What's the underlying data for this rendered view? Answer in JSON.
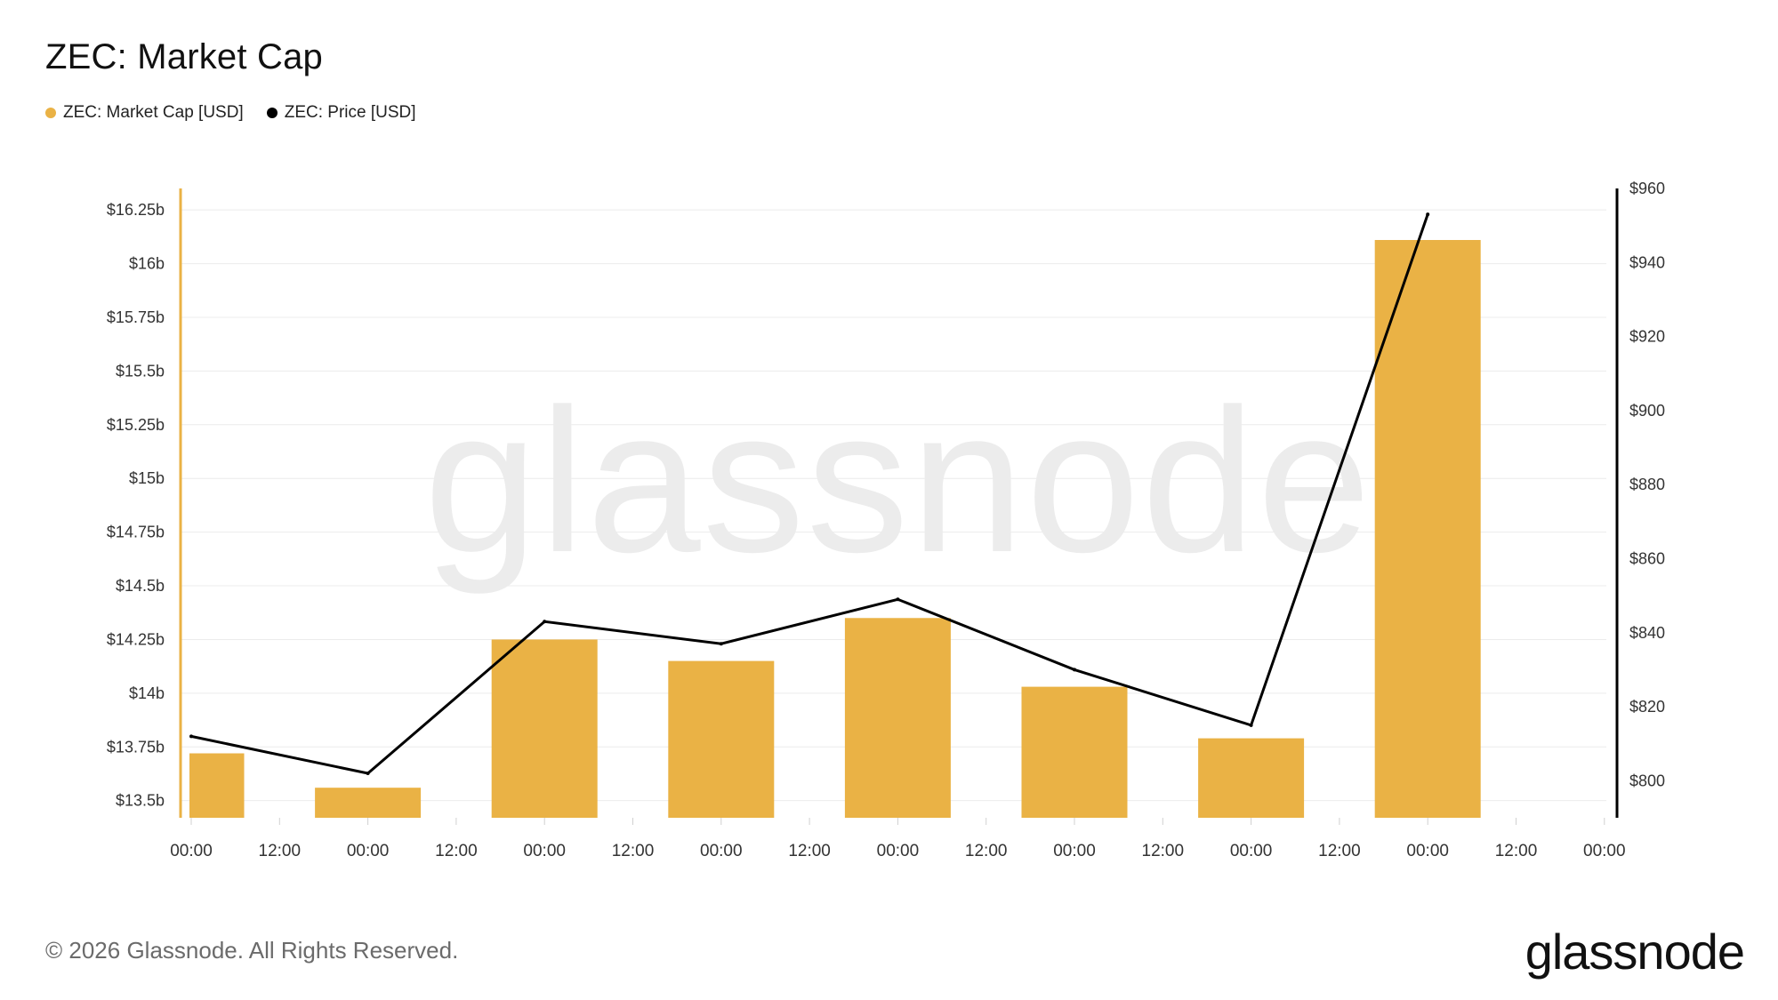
{
  "title": "ZEC: Market Cap",
  "legend": [
    {
      "label": "ZEC: Market Cap [USD]",
      "color": "#EAB245"
    },
    {
      "label": "ZEC: Price [USD]",
      "color": "#000000"
    }
  ],
  "watermark": "glassnode",
  "footer": "© 2026 Glassnode. All Rights Reserved.",
  "brand": "glassnode",
  "chart_data": {
    "type": "bar",
    "grid": true,
    "x_tick_labels": [
      "00:00",
      "12:00",
      "00:00",
      "12:00",
      "00:00",
      "12:00",
      "00:00",
      "12:00",
      "00:00",
      "12:00",
      "00:00",
      "12:00",
      "00:00",
      "12:00",
      "00:00",
      "12:00",
      "00:00"
    ],
    "series": [
      {
        "name": "ZEC: Market Cap [USD]",
        "type": "bar",
        "axis": "left",
        "color": "#EAB245",
        "x_index": [
          0,
          1,
          2,
          3,
          4,
          5,
          6,
          7
        ],
        "values": [
          13.72,
          13.56,
          14.25,
          14.15,
          14.35,
          14.03,
          13.79,
          16.11
        ]
      },
      {
        "name": "ZEC: Price [USD]",
        "type": "line",
        "axis": "right",
        "color": "#000000",
        "x_index": [
          0,
          1,
          2,
          3,
          4,
          5,
          6,
          7
        ],
        "values": [
          812,
          802,
          843,
          837,
          849,
          830,
          815,
          953
        ]
      }
    ],
    "y_left": {
      "ylim": [
        13.42,
        16.35
      ],
      "ticks": [
        13.5,
        13.75,
        14,
        14.25,
        14.5,
        14.75,
        15,
        15.25,
        15.5,
        15.75,
        16,
        16.25
      ],
      "tick_labels": [
        "$13.5b",
        "$13.75b",
        "$14b",
        "$14.25b",
        "$14.5b",
        "$14.75b",
        "$15b",
        "$15.25b",
        "$15.5b",
        "$15.75b",
        "$16b",
        "$16.25b"
      ],
      "color": "#EAB245"
    },
    "y_right": {
      "ylim": [
        790,
        960
      ],
      "ticks": [
        800,
        820,
        840,
        860,
        880,
        900,
        920,
        940,
        960
      ],
      "tick_labels": [
        "$800",
        "$820",
        "$840",
        "$860",
        "$880",
        "$900",
        "$920",
        "$940",
        "$960"
      ],
      "color": "#000000"
    }
  }
}
